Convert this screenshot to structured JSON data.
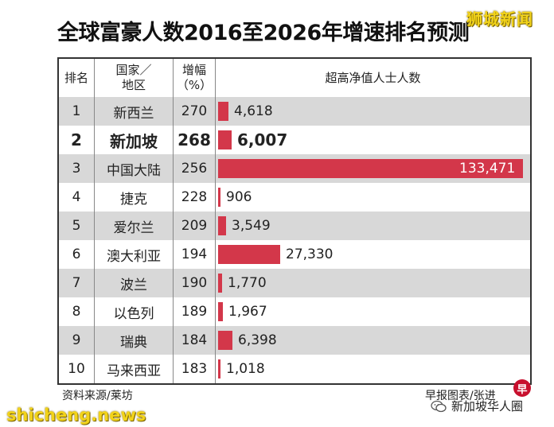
{
  "title": "全球富豪人数2016至2026年增速排名预测",
  "watermark_top": "狮城新闻",
  "watermark_bottom": "shicheng.news",
  "source": "资料来源/莱坊",
  "credit": "早报图表/张进",
  "logo_char": "早",
  "wechat_account": "新加坡华人圈",
  "colors": {
    "bar": "#d3374a",
    "shade": "#d8d8d8",
    "watermark": "#f2d31a"
  },
  "header": {
    "rank": "排名",
    "country": "国家／\n地区",
    "growth": "增幅\n（%）",
    "count": "超高净值人士人数"
  },
  "chart_data": {
    "type": "bar",
    "title": "全球富豪人数2016至2026年增速排名预测",
    "orientation": "horizontal",
    "columns": [
      "排名",
      "国家／地区",
      "增幅（%）",
      "超高净值人士人数"
    ],
    "rows": [
      {
        "rank": "1",
        "country": "新西兰",
        "growth": "270",
        "value": 4618,
        "label": "4,618"
      },
      {
        "rank": "2",
        "country": "新加坡",
        "growth": "268",
        "value": 6007,
        "label": "6,007",
        "highlight": true
      },
      {
        "rank": "3",
        "country": "中国大陆",
        "growth": "256",
        "value": 133471,
        "label": "133,471"
      },
      {
        "rank": "4",
        "country": "捷克",
        "growth": "228",
        "value": 906,
        "label": "906"
      },
      {
        "rank": "5",
        "country": "爱尔兰",
        "growth": "209",
        "value": 3549,
        "label": "3,549"
      },
      {
        "rank": "6",
        "country": "澳大利亚",
        "growth": "194",
        "value": 27330,
        "label": "27,330"
      },
      {
        "rank": "7",
        "country": "波兰",
        "growth": "190",
        "value": 1770,
        "label": "1,770"
      },
      {
        "rank": "8",
        "country": "以色列",
        "growth": "189",
        "value": 1967,
        "label": "1,967"
      },
      {
        "rank": "9",
        "country": "瑞典",
        "growth": "184",
        "value": 6398,
        "label": "6,398"
      },
      {
        "rank": "10",
        "country": "马来西亚",
        "growth": "183",
        "value": 1018,
        "label": "1,018"
      }
    ],
    "xlim": [
      0,
      133471
    ]
  }
}
